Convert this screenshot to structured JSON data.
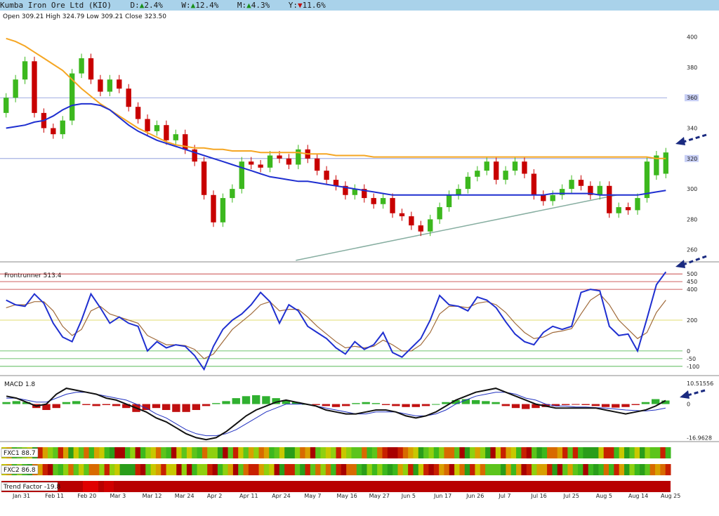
{
  "header": {
    "title": "Kumba Iron Ore Ltd (KIO)",
    "d_label": "D:",
    "d_arrow": "▲",
    "d_value": "2.4%",
    "w_label": "W:",
    "w_arrow": "▲",
    "w_value": "12.4%",
    "m_label": "M:",
    "m_arrow": "▲",
    "m_value": "4.3%",
    "y_label": "Y:",
    "y_arrow": "▼",
    "y_value": "11.6%"
  },
  "ohlc_text": "Open 309.21  High 324.79  Low 309.21  Close 323.50",
  "colors": {
    "up": "#3cb81e",
    "down": "#c80000",
    "neutral": "#c8b400",
    "ma50": "#1f2fd0",
    "ma200": "#f5a623",
    "trend": "#6a9a8a",
    "front": "#1f2fd0",
    "front_signal": "#a06a3a",
    "macd": "#111111",
    "macd_signal": "#2030c0",
    "arrow": "#1a2a80",
    "hline": "#8090d8"
  },
  "chart_data": [
    {
      "type": "candlestick",
      "name": "price",
      "ylim": [
        252,
        410
      ],
      "yticks": [
        260,
        280,
        300,
        320,
        340,
        360,
        380,
        400
      ],
      "hlines": [
        320,
        360
      ],
      "hline_labels": [
        "320",
        "360"
      ],
      "trendline": {
        "from": {
          "x": 0.44,
          "y": 253
        },
        "to": {
          "x": 0.92,
          "y": 296
        }
      },
      "x_labels": [
        "Jan 31",
        "Feb 11",
        "Feb 20",
        "Mar 3",
        "Mar 12",
        "Mar 24",
        "Apr 2",
        "Apr 11",
        "Apr 24",
        "May 7",
        "May 16",
        "May 27",
        "Jun 5",
        "Jun 17",
        "Jun 26",
        "Jul 7",
        "Jul 16",
        "Jul 25",
        "Aug 5",
        "Aug 14",
        "Aug 25"
      ],
      "closes": [
        360,
        372,
        384,
        350,
        340,
        336,
        345,
        376,
        386,
        372,
        364,
        372,
        366,
        354,
        346,
        338,
        342,
        332,
        336,
        326,
        318,
        296,
        278,
        294,
        300,
        318,
        316,
        314,
        322,
        320,
        316,
        326,
        320,
        312,
        306,
        302,
        296,
        300,
        294,
        290,
        294,
        284,
        282,
        276,
        272,
        280,
        288,
        296,
        300,
        308,
        312,
        318,
        306,
        312,
        318,
        310,
        296,
        292,
        296,
        300,
        306,
        302,
        296,
        302,
        284,
        288,
        286,
        294,
        318,
        322,
        324
      ],
      "opens": [
        350,
        360,
        372,
        384,
        350,
        340,
        336,
        345,
        376,
        386,
        372,
        364,
        372,
        366,
        354,
        346,
        338,
        342,
        332,
        336,
        326,
        318,
        296,
        278,
        294,
        300,
        318,
        316,
        314,
        322,
        320,
        316,
        326,
        320,
        312,
        306,
        302,
        296,
        300,
        294,
        290,
        294,
        284,
        282,
        276,
        272,
        280,
        288,
        296,
        300,
        308,
        312,
        318,
        306,
        312,
        318,
        310,
        296,
        292,
        296,
        300,
        306,
        302,
        296,
        302,
        284,
        288,
        286,
        294,
        309,
        310
      ],
      "ma50": [
        340,
        341,
        342,
        344,
        345,
        348,
        352,
        355,
        356,
        356,
        355,
        352,
        347,
        342,
        338,
        335,
        332,
        330,
        328,
        326,
        324,
        322,
        320,
        318,
        316,
        314,
        312,
        310,
        308,
        307,
        306,
        305,
        305,
        304,
        303,
        302,
        301,
        300,
        299,
        298,
        297,
        296,
        296,
        296,
        296,
        296,
        296,
        296,
        296,
        296,
        296,
        296,
        296,
        296,
        296,
        296,
        296,
        296,
        297,
        297,
        297,
        297,
        297,
        296,
        296,
        296,
        296,
        296,
        297,
        298,
        299
      ],
      "ma200": [
        399,
        397,
        394,
        390,
        386,
        382,
        378,
        372,
        366,
        361,
        356,
        352,
        348,
        344,
        340,
        337,
        334,
        331,
        329,
        328,
        327,
        327,
        326,
        326,
        325,
        325,
        325,
        324,
        324,
        324,
        324,
        324,
        323,
        323,
        323,
        322,
        322,
        322,
        322,
        321,
        321,
        321,
        321,
        321,
        321,
        321,
        321,
        321,
        321,
        321,
        321,
        321,
        321,
        321,
        321,
        321,
        321,
        321,
        321,
        321,
        321,
        321,
        321,
        321,
        321,
        321,
        321,
        321,
        321,
        320,
        320
      ]
    },
    {
      "type": "line",
      "name": "Frontrunner",
      "label": "Frontrunner 513.4",
      "ylim": [
        -160,
        560
      ],
      "yticks": [
        -100,
        -50,
        0,
        200,
        400,
        450,
        500
      ],
      "hlines_red": [
        400,
        450,
        500
      ],
      "hlines_yellow": [
        200
      ],
      "hlines_green": [
        0,
        -50,
        -100
      ],
      "series": [
        {
          "name": "Frontrunner",
          "values": [
            330,
            300,
            290,
            370,
            310,
            180,
            90,
            60,
            200,
            370,
            280,
            180,
            220,
            180,
            160,
            0,
            60,
            20,
            40,
            30,
            -30,
            -120,
            30,
            140,
            200,
            240,
            300,
            380,
            320,
            180,
            300,
            260,
            160,
            120,
            80,
            20,
            -20,
            60,
            10,
            40,
            120,
            -10,
            -40,
            20,
            80,
            200,
            360,
            300,
            290,
            260,
            350,
            330,
            280,
            190,
            110,
            60,
            40,
            120,
            160,
            140,
            160,
            380,
            400,
            390,
            160,
            100,
            110,
            0,
            210,
            430,
            513
          ]
        },
        {
          "name": "signal",
          "values": [
            280,
            300,
            300,
            320,
            320,
            260,
            160,
            100,
            140,
            260,
            290,
            240,
            220,
            200,
            180,
            100,
            70,
            40,
            40,
            35,
            10,
            -50,
            -20,
            60,
            140,
            190,
            240,
            300,
            320,
            260,
            270,
            270,
            220,
            160,
            110,
            60,
            20,
            30,
            20,
            30,
            70,
            40,
            0,
            0,
            40,
            120,
            240,
            290,
            290,
            280,
            310,
            320,
            300,
            250,
            180,
            120,
            80,
            90,
            120,
            130,
            145,
            240,
            330,
            370,
            300,
            200,
            140,
            80,
            120,
            250,
            330
          ]
        }
      ]
    },
    {
      "type": "bar+line",
      "name": "MACD",
      "label": "MACD 1.8",
      "ylim": [
        -19,
        13
      ],
      "ytick_labels": [
        "10.51556",
        "0",
        "-16.9628"
      ],
      "yticks": [
        10.51556,
        0,
        -16.9628
      ],
      "series": [
        {
          "name": "histogram",
          "values": [
            1,
            1.5,
            1,
            -2,
            -3,
            -2,
            1,
            1.5,
            -0.5,
            -1,
            -0.5,
            -1,
            -2,
            -4,
            -3,
            -2,
            -3,
            -4,
            -4,
            -3,
            -1,
            0.5,
            1.5,
            3,
            4,
            4.5,
            4,
            3,
            2,
            1,
            0,
            -0.5,
            -1,
            -1.5,
            -1,
            0.5,
            1,
            0.5,
            -0.5,
            -1,
            -1.5,
            -1.5,
            -1,
            0,
            1,
            2,
            2.5,
            2,
            1.5,
            1,
            -1,
            -2,
            -2.5,
            -2,
            -1.5,
            -1,
            -0.5,
            -0.3,
            -0.5,
            -1,
            -1.5,
            -1.8,
            -1.5,
            -0.5,
            1,
            2.5,
            1.8
          ]
        },
        {
          "name": "macd",
          "values": [
            4,
            3,
            1,
            -1,
            0,
            5,
            8,
            7,
            6,
            5,
            3,
            2,
            0,
            -2,
            -4,
            -7,
            -9,
            -12,
            -15,
            -17,
            -18,
            -17,
            -14,
            -10,
            -6,
            -3,
            -1,
            1,
            2,
            1,
            0,
            -1,
            -3,
            -4,
            -5,
            -5,
            -4,
            -3,
            -3,
            -4,
            -6,
            -7,
            -6,
            -4,
            -1,
            2,
            4,
            6,
            7,
            8,
            6,
            4,
            2,
            0,
            -1,
            -2,
            -2,
            -2,
            -2,
            -2,
            -3,
            -4,
            -5,
            -4,
            -3,
            -1,
            1.8
          ]
        },
        {
          "name": "signal",
          "values": [
            3,
            3,
            2,
            1,
            1,
            3,
            5,
            6,
            6,
            5,
            4,
            3,
            2,
            0,
            -2,
            -5,
            -7,
            -10,
            -13,
            -15,
            -16,
            -16,
            -15,
            -13,
            -10,
            -7,
            -4,
            -2,
            0,
            0,
            0,
            -1,
            -2,
            -3,
            -4,
            -5,
            -5,
            -4,
            -4,
            -4,
            -5,
            -6,
            -6,
            -5,
            -3,
            0,
            2,
            4,
            5,
            6,
            6,
            5,
            3,
            2,
            0,
            -1,
            -1,
            -1.5,
            -1.5,
            -1.8,
            -2,
            -2.5,
            -3,
            -3.3,
            -3.5,
            -3,
            -2
          ]
        }
      ]
    }
  ],
  "fxc1_label": "FXC1 88.7",
  "fxc2_label": "FXC2 86.8",
  "trend_label": "Trend Factor -19.8"
}
